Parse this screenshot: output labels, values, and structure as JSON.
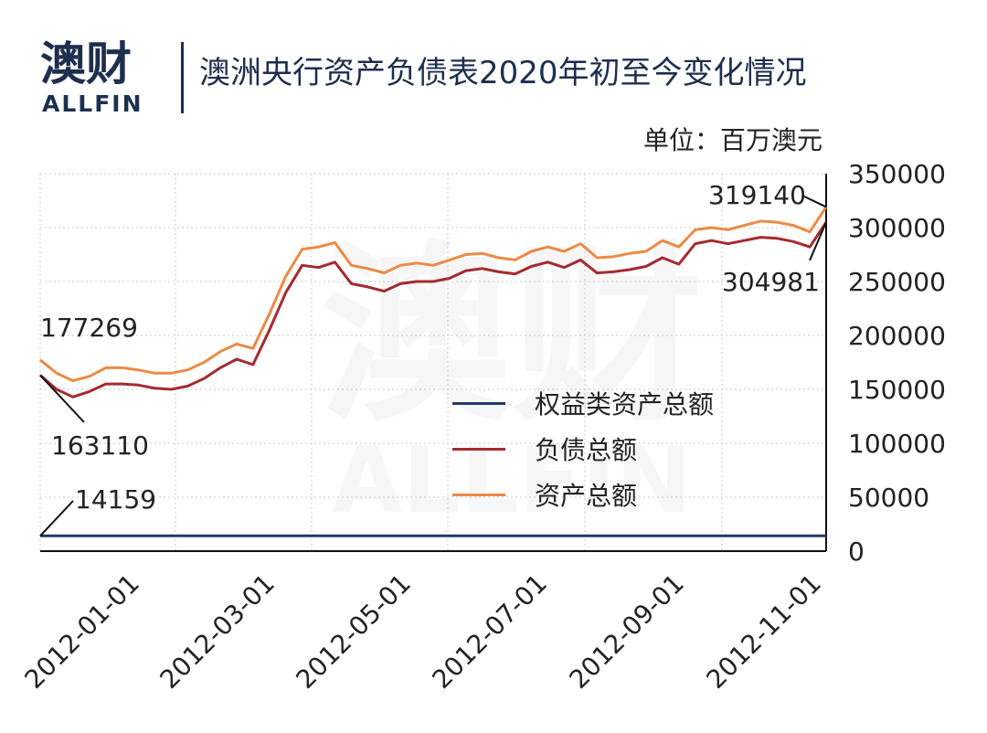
{
  "header": {
    "logo_cn": "澳财",
    "logo_en": "ALLFIN",
    "title": "澳洲央行资产负债表2020年初至今变化情况"
  },
  "chart_data": {
    "type": "line",
    "unit": "单位：百万澳元",
    "y_axis": {
      "position": "right",
      "ylim": [
        0,
        350000
      ],
      "ticks": [
        "0",
        "50000",
        "100000",
        "150000",
        "200000",
        "250000",
        "300000",
        "350000"
      ]
    },
    "x_axis": {
      "ticks": [
        "2012-01-01",
        "2012-03-01",
        "2012-05-01",
        "2012-07-01",
        "2012-09-01",
        "2012-11-01"
      ]
    },
    "grid": true,
    "legend_position": "center",
    "series": [
      {
        "name": "权益类资产总额",
        "color": "#1f3a6e",
        "values": [
          14159,
          14159,
          14159,
          14159,
          14159,
          14159,
          14159,
          14159,
          14159,
          14159,
          14159,
          14159,
          14159,
          14159,
          14159,
          14159,
          14159,
          14159,
          14159,
          14159,
          14159,
          14159,
          14159,
          14159,
          14159,
          14159,
          14159,
          14159,
          14159,
          14159,
          14159,
          14159,
          14159,
          14159,
          14159,
          14159,
          14159,
          14159,
          14159,
          14159,
          14159,
          14159,
          14159,
          14159,
          14159,
          14159,
          14159,
          14159,
          14159
        ]
      },
      {
        "name": "负债总额",
        "color": "#a52a2f",
        "values": [
          163110,
          150000,
          143000,
          148000,
          155000,
          155000,
          154000,
          151000,
          150000,
          153000,
          160000,
          170000,
          178000,
          173000,
          205000,
          240000,
          265000,
          263000,
          268000,
          248000,
          245000,
          241000,
          248000,
          250000,
          250000,
          253000,
          260000,
          262000,
          259000,
          257000,
          264000,
          268000,
          263000,
          270000,
          258000,
          259000,
          261000,
          264000,
          272000,
          266000,
          285000,
          288000,
          285000,
          288000,
          291000,
          290000,
          287000,
          282000,
          304981
        ]
      },
      {
        "name": "资产总额",
        "color": "#ec8a45",
        "values": [
          177269,
          165000,
          158000,
          162000,
          170000,
          170000,
          168000,
          165000,
          165000,
          168000,
          175000,
          185000,
          192000,
          188000,
          220000,
          255000,
          280000,
          282000,
          286000,
          265000,
          262000,
          258000,
          265000,
          267000,
          265000,
          270000,
          275000,
          276000,
          272000,
          270000,
          278000,
          282000,
          278000,
          285000,
          272000,
          273000,
          276000,
          278000,
          288000,
          282000,
          298000,
          300000,
          298000,
          302000,
          306000,
          305000,
          302000,
          296000,
          319140
        ]
      }
    ],
    "annotations": [
      {
        "label": "177269"
      },
      {
        "label": "163110"
      },
      {
        "label": "14159"
      },
      {
        "label": "319140"
      },
      {
        "label": "304981"
      }
    ],
    "watermark": "澳财 ALLFIN"
  }
}
